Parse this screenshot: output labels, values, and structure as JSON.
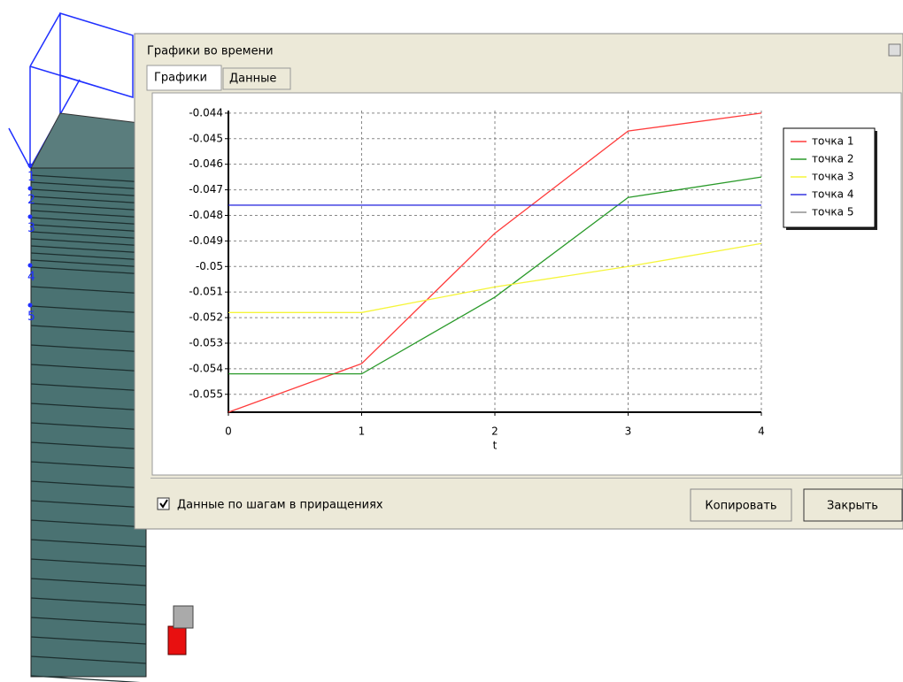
{
  "window": {
    "title": "Графики во времени",
    "tabs": [
      "Графики",
      "Данные"
    ],
    "checkbox_label": "Данные по шагам в приращениях",
    "buttons": [
      "Копировать",
      "Закрыть"
    ]
  },
  "model": {
    "point_labels": [
      "1",
      "2",
      "3",
      "4",
      "5"
    ]
  },
  "chart_data": {
    "type": "line",
    "x_label": "t",
    "x": [
      0,
      1,
      2,
      3,
      4
    ],
    "xlim": [
      0,
      4
    ],
    "xticks": [
      0,
      1,
      2,
      3,
      4
    ],
    "ylim": [
      -0.0557,
      -0.0439
    ],
    "yticks": [
      -0.044,
      -0.045,
      -0.046,
      -0.047,
      -0.048,
      -0.049,
      -0.05,
      -0.051,
      -0.052,
      -0.053,
      -0.054,
      -0.055
    ],
    "grid": true,
    "legend": "right",
    "series": [
      {
        "name": "точка 1",
        "color": "#ff3b3b",
        "values": [
          -0.0557,
          -0.0538,
          -0.0487,
          -0.0447,
          -0.044
        ]
      },
      {
        "name": "точка 2",
        "color": "#2a9a2a",
        "values": [
          -0.0542,
          -0.0542,
          -0.0512,
          -0.0473,
          -0.0465
        ]
      },
      {
        "name": "точка 3",
        "color": "#f5f53a",
        "values": [
          -0.0518,
          -0.0518,
          -0.0508,
          -0.05,
          -0.0491
        ]
      },
      {
        "name": "точка 4",
        "color": "#3535e0",
        "values": [
          -0.0476,
          -0.0476,
          -0.0476,
          -0.0476,
          -0.0476
        ]
      },
      {
        "name": "точка 5",
        "color": "#909090",
        "values": [
          null,
          null,
          null,
          null,
          null
        ]
      }
    ]
  }
}
